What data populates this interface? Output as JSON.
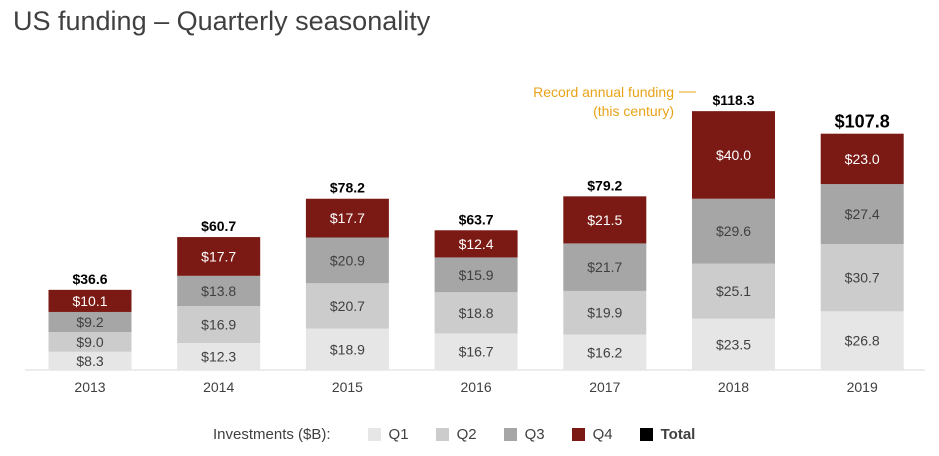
{
  "title": "US funding – Quarterly seasonality",
  "chart_data": {
    "type": "bar",
    "stacked": true,
    "title": "US funding – Quarterly seasonality",
    "categories": [
      "2013",
      "2014",
      "2015",
      "2016",
      "2017",
      "2018",
      "2019"
    ],
    "series": [
      {
        "name": "Q1",
        "color": "#e6e6e6",
        "values": [
          8.3,
          12.3,
          18.9,
          16.7,
          16.2,
          23.5,
          26.8
        ]
      },
      {
        "name": "Q2",
        "color": "#cccccc",
        "values": [
          9.0,
          16.9,
          20.7,
          18.8,
          19.9,
          25.1,
          30.7
        ]
      },
      {
        "name": "Q3",
        "color": "#a6a6a6",
        "values": [
          9.2,
          13.8,
          20.9,
          15.9,
          21.7,
          29.6,
          27.4
        ]
      },
      {
        "name": "Q4",
        "color": "#7b1a14",
        "values": [
          10.1,
          17.7,
          17.7,
          12.4,
          21.5,
          40.0,
          23.0
        ]
      }
    ],
    "totals": [
      "$36.6",
      "$60.7",
      "$78.2",
      "$63.7",
      "$79.2",
      "$118.3",
      "$107.8"
    ],
    "total_color": "#000000",
    "ylim": [
      0,
      120
    ],
    "grid": false,
    "legend_title": "Investments ($B):",
    "legend_placement": "bottom",
    "legend": [
      "Q1",
      "Q2",
      "Q3",
      "Q4",
      "Total"
    ],
    "annotation": {
      "lines": [
        "Record annual funding",
        "(this century)"
      ],
      "category": "2018",
      "color": "#e8a317"
    }
  }
}
